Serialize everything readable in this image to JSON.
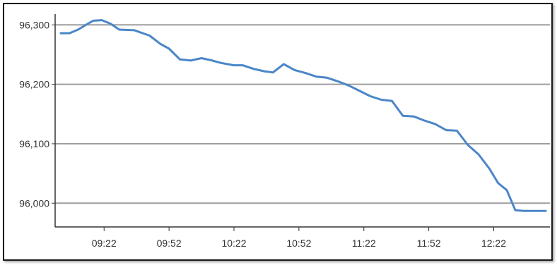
{
  "chart_data": {
    "type": "line",
    "title": "",
    "xlabel": "",
    "ylabel": "",
    "ylim": [
      95960,
      96330
    ],
    "y_ticks": [
      96000,
      96100,
      96200,
      96300
    ],
    "y_tick_labels": [
      "96,000",
      "96,100",
      "96,200",
      "96,300"
    ],
    "x_ticks": [
      "09:22",
      "09:52",
      "10:22",
      "10:52",
      "11:22",
      "11:52",
      "12:22"
    ],
    "xlim": [
      "09:02",
      "12:46"
    ],
    "grid": "horizontal",
    "legend": "none",
    "colors": {
      "line": "#4a86c8",
      "grid": "#9e9e9e",
      "axis": "#333333"
    },
    "series": [
      {
        "x": [
          "09:02",
          "09:06",
          "09:10",
          "09:14",
          "09:17",
          "09:21",
          "09:25",
          "09:29",
          "09:36",
          "09:43",
          "09:48",
          "09:52",
          "09:57",
          "10:02",
          "10:07",
          "10:12",
          "10:16",
          "10:22",
          "10:26",
          "10:31",
          "10:36",
          "10:40",
          "10:45",
          "10:50",
          "10:55",
          "11:00",
          "11:05",
          "11:10",
          "11:15",
          "11:20",
          "11:25",
          "11:30",
          "11:35",
          "11:40",
          "11:45",
          "11:50",
          "11:55",
          "12:00",
          "12:05",
          "12:10",
          "12:15",
          "12:20",
          "12:24",
          "12:28",
          "12:32",
          "12:36",
          "12:41",
          "12:46"
        ],
        "values": [
          96286,
          96286,
          96292,
          96301,
          96307,
          96308,
          96302,
          96292,
          96291,
          96282,
          96268,
          96260,
          96242,
          96240,
          96244,
          96240,
          96236,
          96232,
          96232,
          96226,
          96222,
          96220,
          96234,
          96224,
          96219,
          96213,
          96211,
          96205,
          96198,
          96189,
          96180,
          96174,
          96172,
          96147,
          96146,
          96139,
          96133,
          96123,
          96122,
          96098,
          96082,
          96058,
          96034,
          96022,
          95988,
          95987,
          95987,
          95987
        ]
      }
    ]
  }
}
